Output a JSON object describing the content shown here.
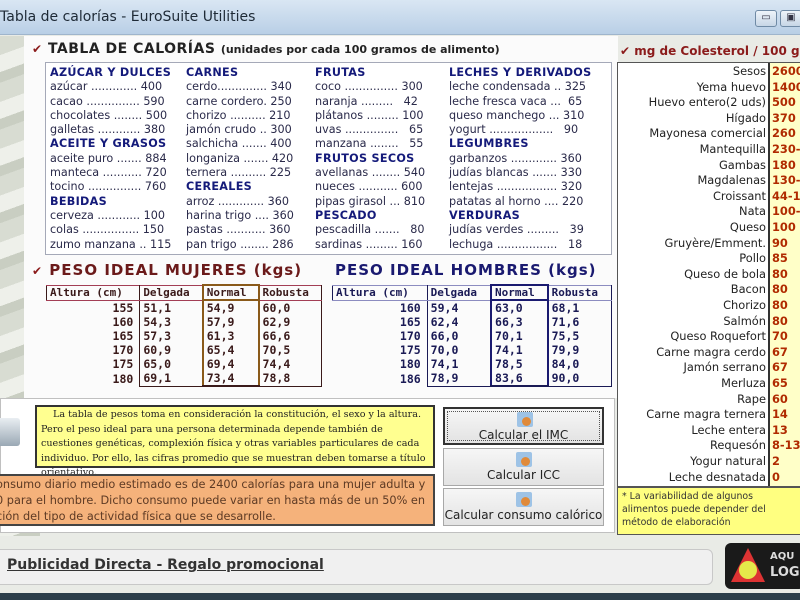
{
  "window": {
    "title": "Tabla de calorías - EuroSuite Utilities",
    "minimize": "▭",
    "maximize": "▣"
  },
  "calorias": {
    "title": "TABLA DE CALORÍAS",
    "subtitle": "(unidades por cada 100 gramos de alimento)",
    "columns": [
      [
        {
          "cat": "AZÚCAR Y DULCES"
        },
        {
          "t": "azúcar ............. 400"
        },
        {
          "t": "cacao ............... 590"
        },
        {
          "t": "chocolates ........ 500"
        },
        {
          "t": "galletas ............ 380"
        },
        {
          "cat": "ACEITE Y GRASOS"
        },
        {
          "t": "aceite puro ....... 884"
        },
        {
          "t": "manteca ........... 720"
        },
        {
          "t": "tocino ............... 760"
        },
        {
          "cat": "BEBIDAS"
        },
        {
          "t": "cerveza ............ 100"
        },
        {
          "t": "colas ................ 150"
        },
        {
          "t": "zumo manzana .. 115"
        }
      ],
      [
        {
          "cat": "CARNES"
        },
        {
          "t": "cerdo.............. 340"
        },
        {
          "t": "carne cordero. 250"
        },
        {
          "t": "chorizo .......... 210"
        },
        {
          "t": "jamón crudo .. 300"
        },
        {
          "t": "salchicha ....... 400"
        },
        {
          "t": "longaniza ....... 420"
        },
        {
          "t": "ternera .......... 225"
        },
        {
          "cat": "CEREALES"
        },
        {
          "t": "arroz ............. 360"
        },
        {
          "t": "harina trigo .... 360"
        },
        {
          "t": "pastas ........... 360"
        },
        {
          "t": "pan trigo ........ 286"
        }
      ],
      [
        {
          "cat": "FRUTAS"
        },
        {
          "t": "coco ............... 300"
        },
        {
          "t": "naranja .........   42"
        },
        {
          "t": "plátanos ......... 100"
        },
        {
          "t": "uvas ...............   65"
        },
        {
          "t": "manzana ........   55"
        },
        {
          "cat": "FRUTOS SECOS"
        },
        {
          "t": "avellanas ........ 540"
        },
        {
          "t": "nueces ........... 600"
        },
        {
          "t": "pipas girasol ... 810"
        },
        {
          "cat": "PESCADO"
        },
        {
          "t": "pescadilla .......   80"
        },
        {
          "t": "sardinas ......... 160"
        }
      ],
      [
        {
          "cat": "LECHES Y DERIVADOS"
        },
        {
          "t": "leche condensada .. 325"
        },
        {
          "t": "leche fresca vaca ...  65"
        },
        {
          "t": "queso manchego ... 310"
        },
        {
          "t": "yogurt ..................   90"
        },
        {
          "cat": "LEGUMBRES"
        },
        {
          "t": "garbanzos ............. 360"
        },
        {
          "t": "judías blancas ....... 330"
        },
        {
          "t": "lentejas ................. 320"
        },
        {
          "t": "patatas al horno .... 220"
        },
        {
          "cat": "VERDURAS"
        },
        {
          "t": "judías verdes .........   39"
        },
        {
          "t": "lechuga .................   18"
        }
      ]
    ]
  },
  "peso_mujeres": {
    "title": "PESO IDEAL MUJERES (kgs)",
    "headers": [
      "Altura (cm)",
      "Delgada",
      "Normal",
      "Robusta"
    ],
    "rows": [
      [
        "155",
        "51,1",
        "54,9",
        "60,0"
      ],
      [
        "160",
        "54,3",
        "57,9",
        "62,9"
      ],
      [
        "165",
        "57,3",
        "61,3",
        "66,6"
      ],
      [
        "170",
        "60,9",
        "65,4",
        "70,5"
      ],
      [
        "175",
        "65,0",
        "69,4",
        "74,4"
      ],
      [
        "180",
        "69,1",
        "73,4",
        "78,8"
      ]
    ]
  },
  "peso_hombres": {
    "title": "PESO IDEAL HOMBRES (kgs)",
    "headers": [
      "Altura (cm)",
      "Delgada",
      "Normal",
      "Robusta"
    ],
    "rows": [
      [
        "160",
        "59,4",
        "63,0",
        "68,1"
      ],
      [
        "165",
        "62,4",
        "66,3",
        "71,6"
      ],
      [
        "170",
        "66,0",
        "70,1",
        "75,5"
      ],
      [
        "175",
        "70,0",
        "74,1",
        "79,9"
      ],
      [
        "180",
        "74,1",
        "78,5",
        "84,0"
      ],
      [
        "186",
        "78,9",
        "83,6",
        "90,0"
      ]
    ]
  },
  "info": {
    "pesos_note": "La tabla de pesos toma en consideración la constitución, el sexo y la altura. Pero el peso ideal para una persona determinada depende también de cuestiones genéticas, complexión física y otras variables particulares de cada individuo. Por ello, las cifras promedio que se muestran deben tomarse a título orientativo.",
    "consumo_lines": [
      "onsumo diario medio estimado es de 2400 calorías para una mujer adulta y",
      "0 para el hombre. Dicho consumo puede variar en hasta más de un 50% en",
      "ción del tipo de actividad física que se desarrolle."
    ]
  },
  "buttons": {
    "imc": "Calcular el IMC",
    "icc": "Calcular ICC",
    "consumo": "Calcular consumo calórico"
  },
  "colesterol": {
    "title": "mg de Colesterol / 100 g",
    "items": [
      [
        "Sesos",
        "2600"
      ],
      [
        "Yema huevo",
        "1400"
      ],
      [
        "Huevo entero(2 uds)",
        "500"
      ],
      [
        "Hígado",
        "370"
      ],
      [
        "Mayonesa comercial",
        "260"
      ],
      [
        "Mantequilla",
        "230-"
      ],
      [
        "Gambas",
        "180"
      ],
      [
        "Magdalenas",
        "130-"
      ],
      [
        "Croissant",
        "44-1"
      ],
      [
        "Nata",
        "100-"
      ],
      [
        "Queso",
        "100"
      ],
      [
        "Gruyère/Emment.",
        "90"
      ],
      [
        "Pollo",
        "85"
      ],
      [
        "Queso de bola",
        "80"
      ],
      [
        "Bacon",
        "80"
      ],
      [
        "Chorizo",
        "80"
      ],
      [
        "Salmón",
        "80"
      ],
      [
        "Queso Roquefort",
        "70"
      ],
      [
        "Carne magra cerdo",
        "67"
      ],
      [
        "Jamón serrano",
        "67"
      ],
      [
        "Merluza",
        "65"
      ],
      [
        "Rape",
        "60"
      ],
      [
        "Carne magra ternera",
        "14"
      ],
      [
        "Leche entera",
        "13"
      ],
      [
        "Requesón",
        "8-13"
      ],
      [
        "Yogur natural",
        "2"
      ],
      [
        "Leche desnatada",
        "0"
      ]
    ],
    "note": "*  La variabilidad de algunos alimentos puede depender del método de elaboración"
  },
  "footer": {
    "ad_link": "Publicidad Directa - Regalo promocional",
    "logo_line1": "AQU",
    "logo_line2": "LOG"
  }
}
